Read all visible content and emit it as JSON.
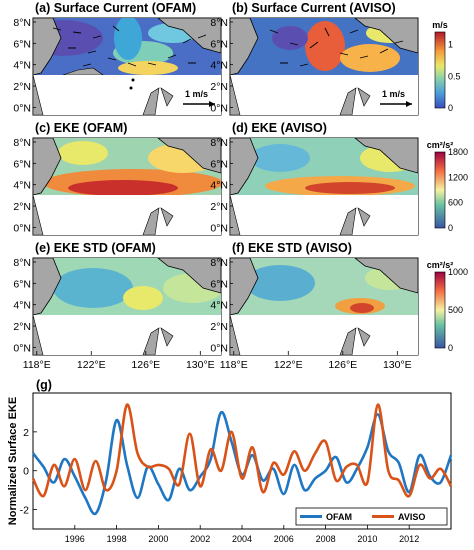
{
  "colors": {
    "ofam": "#1f77c4",
    "aviso": "#d95319",
    "land": "#a6a6a6"
  },
  "maps": {
    "x_ticks": [
      "118°E",
      "122°E",
      "126°E",
      "130°E"
    ],
    "y_ticks": [
      "8°N",
      "6°N",
      "4°N",
      "2°N",
      "0°N"
    ],
    "panels": [
      {
        "title": "(a) Surface Current (OFAM)",
        "scale_label": "1 m/s"
      },
      {
        "title": "(b) Surface Current (AVISO)",
        "scale_label": "1 m/s"
      },
      {
        "title": "(c) EKE (OFAM)"
      },
      {
        "title": "(d) EKE (AVISO)"
      },
      {
        "title": "(e) EKE STD (OFAM)"
      },
      {
        "title": "(f) EKE STD (AVISO)"
      }
    ],
    "colorbars": [
      {
        "unit": "m/s",
        "ticks": [
          "1",
          "0.5",
          "0"
        ],
        "tick_values": [
          1,
          0.5,
          0
        ],
        "range": [
          0,
          1.2
        ]
      },
      {
        "unit": "cm²/s²",
        "ticks": [
          "1800",
          "1200",
          "600",
          "0"
        ],
        "tick_values": [
          1800,
          1200,
          600,
          0
        ],
        "range": [
          0,
          1800
        ]
      },
      {
        "unit": "cm²/s²",
        "ticks": [
          "1000",
          "500",
          "0"
        ],
        "tick_values": [
          1000,
          500,
          0
        ],
        "range": [
          0,
          1000
        ]
      }
    ]
  },
  "chart_data": {
    "type": "line",
    "title": "(g)",
    "xlabel": "",
    "ylabel": "Normalized Surface EKE",
    "xlim": [
      1994,
      2014
    ],
    "ylim": [
      -3,
      4
    ],
    "x_ticks": [
      "1996",
      "1998",
      "2000",
      "2002",
      "2004",
      "2006",
      "2008",
      "2010",
      "2012"
    ],
    "x_tick_values": [
      1996,
      1998,
      2000,
      2002,
      2004,
      2006,
      2008,
      2010,
      2012
    ],
    "y_ticks": [
      "2",
      "0",
      "-2"
    ],
    "y_tick_values": [
      2,
      0,
      -2
    ],
    "legend": "bottom-right",
    "x": [
      1994.0,
      1994.5,
      1995.0,
      1995.5,
      1996.0,
      1996.5,
      1997.0,
      1997.5,
      1998.0,
      1998.5,
      1999.0,
      1999.5,
      2000.0,
      2000.5,
      2001.0,
      2001.5,
      2002.0,
      2002.5,
      2003.0,
      2003.5,
      2004.0,
      2004.5,
      2005.0,
      2005.5,
      2006.0,
      2006.5,
      2007.0,
      2007.5,
      2008.0,
      2008.5,
      2009.0,
      2009.5,
      2010.0,
      2010.5,
      2011.0,
      2011.5,
      2012.0,
      2012.5,
      2013.0,
      2013.5,
      2014.0
    ],
    "series": [
      {
        "name": "OFAM",
        "values": [
          0.9,
          0.2,
          -0.6,
          0.6,
          -0.3,
          -1.4,
          -2.2,
          -0.5,
          2.6,
          0.3,
          -1.4,
          0.2,
          -0.7,
          -1.5,
          0.1,
          -1.0,
          -0.3,
          0.6,
          3.0,
          1.5,
          -0.2,
          0.8,
          -0.5,
          0.1,
          -1.2,
          0.3,
          -1.0,
          -0.4,
          0.0,
          0.7,
          -0.6,
          0.1,
          1.2,
          2.9,
          1.0,
          0.4,
          -1.1,
          0.8,
          -0.3,
          -0.6,
          0.8
        ]
      },
      {
        "name": "AVISO",
        "values": [
          -0.4,
          -1.3,
          0.3,
          -0.8,
          0.6,
          -1.0,
          0.5,
          -1.0,
          0.0,
          3.4,
          0.9,
          0.2,
          0.3,
          0.1,
          -0.7,
          1.9,
          -0.8,
          1.1,
          0.0,
          2.0,
          -0.4,
          1.2,
          -1.1,
          0.4,
          -0.2,
          1.0,
          0.0,
          0.9,
          1.5,
          -0.5,
          0.2,
          0.3,
          -0.6,
          3.4,
          0.0,
          -0.5,
          -1.3,
          0.3,
          -0.4,
          0.1,
          -0.8
        ]
      }
    ]
  }
}
